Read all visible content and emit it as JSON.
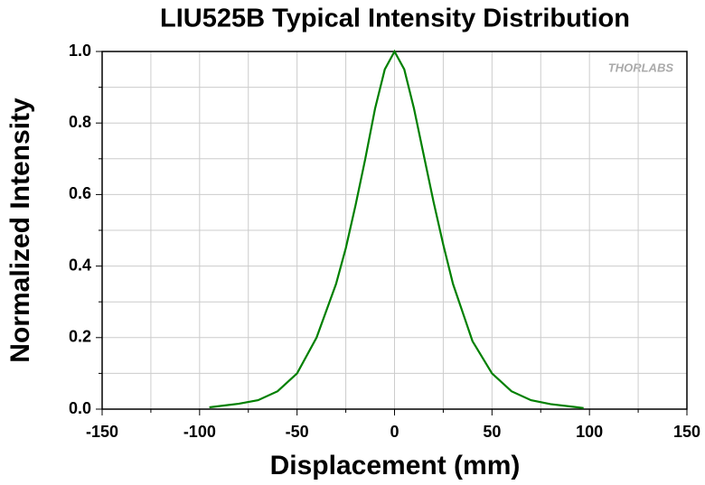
{
  "chart_data": {
    "type": "line",
    "title": "LIU525B Typical Intensity Distribution",
    "x_label": "Displacement (mm)",
    "y_label": "Normalized Intensity",
    "annotation": "THORLABS",
    "x": [
      -95,
      -80,
      -70,
      -60,
      -50,
      -40,
      -30,
      -25,
      -20,
      -15,
      -10,
      -5,
      0,
      5,
      10,
      15,
      20,
      25,
      30,
      40,
      50,
      60,
      70,
      80,
      97
    ],
    "series": [
      {
        "name": "Intensity",
        "color": "#008000",
        "values": [
          0.005,
          0.015,
          0.025,
          0.05,
          0.1,
          0.2,
          0.35,
          0.45,
          0.57,
          0.7,
          0.84,
          0.95,
          1.0,
          0.95,
          0.84,
          0.71,
          0.58,
          0.46,
          0.35,
          0.19,
          0.1,
          0.05,
          0.025,
          0.014,
          0.003
        ]
      }
    ],
    "xlim": [
      -150,
      150
    ],
    "xticks": [
      -150,
      -100,
      -50,
      0,
      50,
      100,
      150
    ],
    "ylim": [
      0,
      1
    ],
    "yticks": [
      {
        "value": 0,
        "label": "0.0"
      },
      0.2,
      0.4,
      0.6,
      0.8,
      {
        "value": 1,
        "label": "1.0"
      }
    ],
    "grid": true
  }
}
